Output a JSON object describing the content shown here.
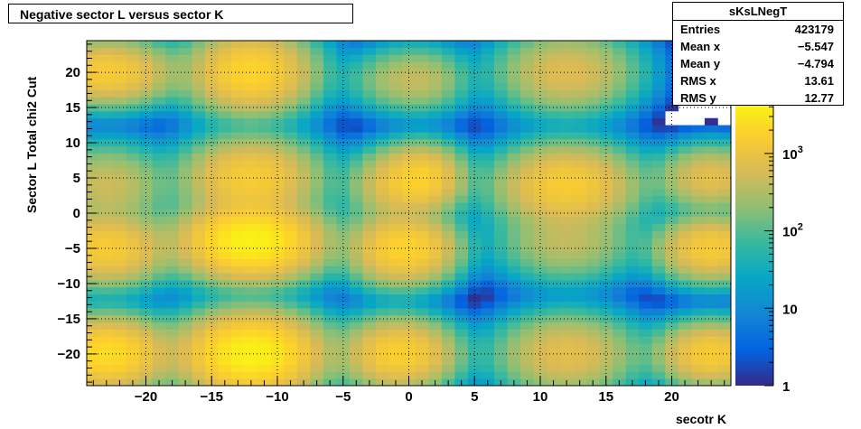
{
  "window": {
    "title": "Negative sector L versus sector K"
  },
  "stats": {
    "name": "sKsLNegT",
    "rows": [
      {
        "key": "Entries",
        "value": "423179"
      },
      {
        "key": "Mean x",
        "value": "−5.547"
      },
      {
        "key": "Mean y",
        "value": "−4.794"
      },
      {
        "key": "RMS x",
        "value": "13.61"
      },
      {
        "key": "RMS y",
        "value": "12.77"
      }
    ]
  },
  "chart_data": {
    "type": "heatmap",
    "title": "Negative sector L versus sector K",
    "xlabel": "secotr K",
    "ylabel": "Sector L   Total chi2 Cut",
    "xlim": [
      -24.5,
      24.5
    ],
    "ylim": [
      -24.5,
      24.5
    ],
    "grid": true,
    "x_ticks": [
      -20,
      -15,
      -10,
      -5,
      0,
      5,
      10,
      15,
      20
    ],
    "x_tick_labels": [
      "−20",
      "−15",
      "−10",
      "−5",
      "0",
      "5",
      "10",
      "15",
      "20"
    ],
    "y_ticks": [
      -20,
      -15,
      -10,
      -5,
      0,
      5,
      10,
      15,
      20
    ],
    "y_tick_labels": [
      "−20",
      "−15",
      "−10",
      "−5",
      "0",
      "5",
      "10",
      "15",
      "20"
    ],
    "z_scale": "log",
    "zlim": [
      1,
      5000
    ],
    "colorbar_ticks": [
      1,
      10,
      100,
      1000
    ],
    "colorbar_labels": [
      {
        "base": "1",
        "exp": ""
      },
      {
        "base": "10",
        "exp": ""
      },
      {
        "base": "10",
        "exp": "2"
      },
      {
        "base": "10",
        "exp": "3"
      }
    ],
    "palette": [
      "#352a87",
      "#0363e1",
      "#1485d4",
      "#06a7c6",
      "#38b99e",
      "#92bf73",
      "#d9ba56",
      "#fcce2e",
      "#f9fb0e"
    ],
    "blobs": [
      {
        "x": -12,
        "y": 20,
        "amp": 2000,
        "sx": 2.3,
        "sy": 2.8
      },
      {
        "x": -12,
        "y": 5,
        "amp": 1500,
        "sx": 2.5,
        "sy": 2.8
      },
      {
        "x": -12,
        "y": -4,
        "amp": 4000,
        "sx": 2.6,
        "sy": 2.6
      },
      {
        "x": -12,
        "y": -20,
        "amp": 4000,
        "sx": 2.6,
        "sy": 2.8
      },
      {
        "x": -23,
        "y": 20,
        "amp": 1500,
        "sx": 2.5,
        "sy": 2.2
      },
      {
        "x": -23,
        "y": 4,
        "amp": 500,
        "sx": 2.3,
        "sy": 2.8
      },
      {
        "x": -23,
        "y": -5,
        "amp": 1500,
        "sx": 2.3,
        "sy": 2.5
      },
      {
        "x": -23,
        "y": -20,
        "amp": 2500,
        "sx": 2.3,
        "sy": 2.5
      },
      {
        "x": -1,
        "y": 19,
        "amp": 200,
        "sx": 2.0,
        "sy": 2.2
      },
      {
        "x": -1,
        "y": 4,
        "amp": 700,
        "sx": 1.8,
        "sy": 2.5
      },
      {
        "x": -1,
        "y": -5,
        "amp": 1500,
        "sx": 1.8,
        "sy": 2.5
      },
      {
        "x": -1,
        "y": -20,
        "amp": 1500,
        "sx": 2.0,
        "sy": 2.5
      },
      {
        "x": 1,
        "y": 19,
        "amp": 300,
        "sx": 1.8,
        "sy": 2.3
      },
      {
        "x": 1,
        "y": 5,
        "amp": 1500,
        "sx": 1.6,
        "sy": 2.3
      },
      {
        "x": 1,
        "y": -5,
        "amp": 800,
        "sx": 1.6,
        "sy": 2.3
      },
      {
        "x": 1,
        "y": -20,
        "amp": 300,
        "sx": 1.8,
        "sy": 2.3
      },
      {
        "x": 12,
        "y": 20,
        "amp": 700,
        "sx": 2.6,
        "sy": 2.8
      },
      {
        "x": 12,
        "y": 4,
        "amp": 1500,
        "sx": 2.6,
        "sy": 2.8
      },
      {
        "x": 12,
        "y": -4,
        "amp": 400,
        "sx": 2.6,
        "sy": 2.8
      },
      {
        "x": 12,
        "y": -20,
        "amp": 800,
        "sx": 2.6,
        "sy": 2.8
      },
      {
        "x": 23,
        "y": 5,
        "amp": 800,
        "sx": 2.0,
        "sy": 2.2
      },
      {
        "x": 23,
        "y": -5,
        "amp": 1500,
        "sx": 2.0,
        "sy": 2.2
      },
      {
        "x": 23,
        "y": -20,
        "amp": 1500,
        "sx": 2.0,
        "sy": 2.2
      }
    ]
  }
}
